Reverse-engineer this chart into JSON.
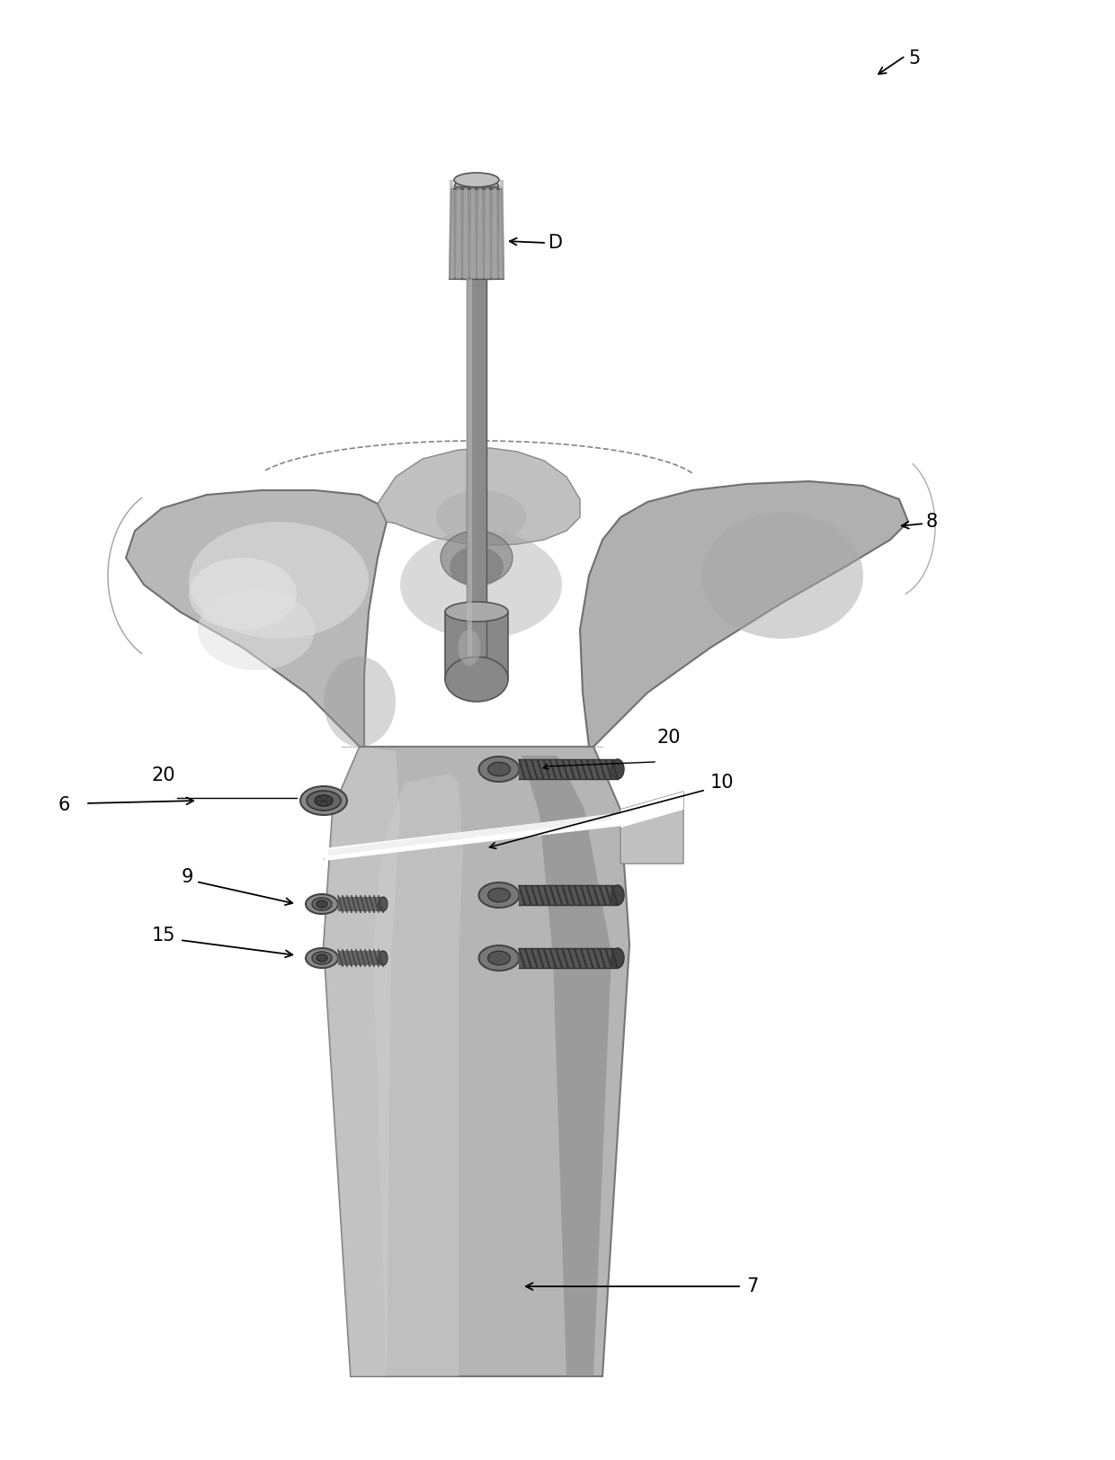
{
  "background_color": "#ffffff",
  "figure_width": 12.4,
  "figure_height": 16.23,
  "text_color": "#000000",
  "bone_base": "#b8b8b8",
  "bone_light": "#d4d4d4",
  "bone_bright": "#e8e8e8",
  "bone_dark": "#888888",
  "bone_darker": "#707070",
  "rod_mid": "#909090",
  "rod_dark": "#606060",
  "rod_light": "#b0b0b0",
  "screw_dark": "#404040",
  "screw_mid": "#666666",
  "screw_light": "#999999"
}
